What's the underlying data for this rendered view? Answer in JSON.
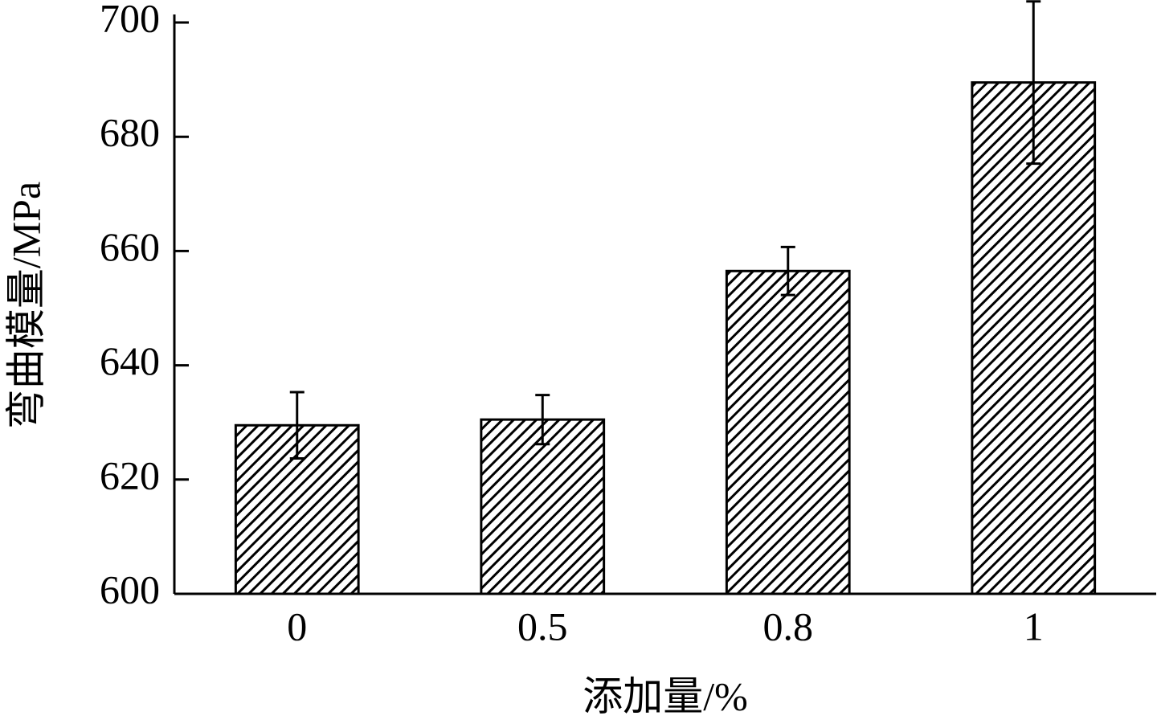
{
  "chart_data": {
    "type": "bar",
    "ylabel": "弯曲模量/MPa",
    "xlabel": "添加量/%",
    "categories": [
      "0",
      "0.5",
      "0.8",
      "1"
    ],
    "values": [
      629.5,
      630.5,
      656.5,
      689.5
    ],
    "errors": [
      5.8,
      4.3,
      4.2,
      14.2
    ],
    "color": "#000000",
    "ylim": [
      600,
      700
    ],
    "yticks": [
      600,
      620,
      640,
      660,
      680,
      700
    ],
    "grid": false
  }
}
